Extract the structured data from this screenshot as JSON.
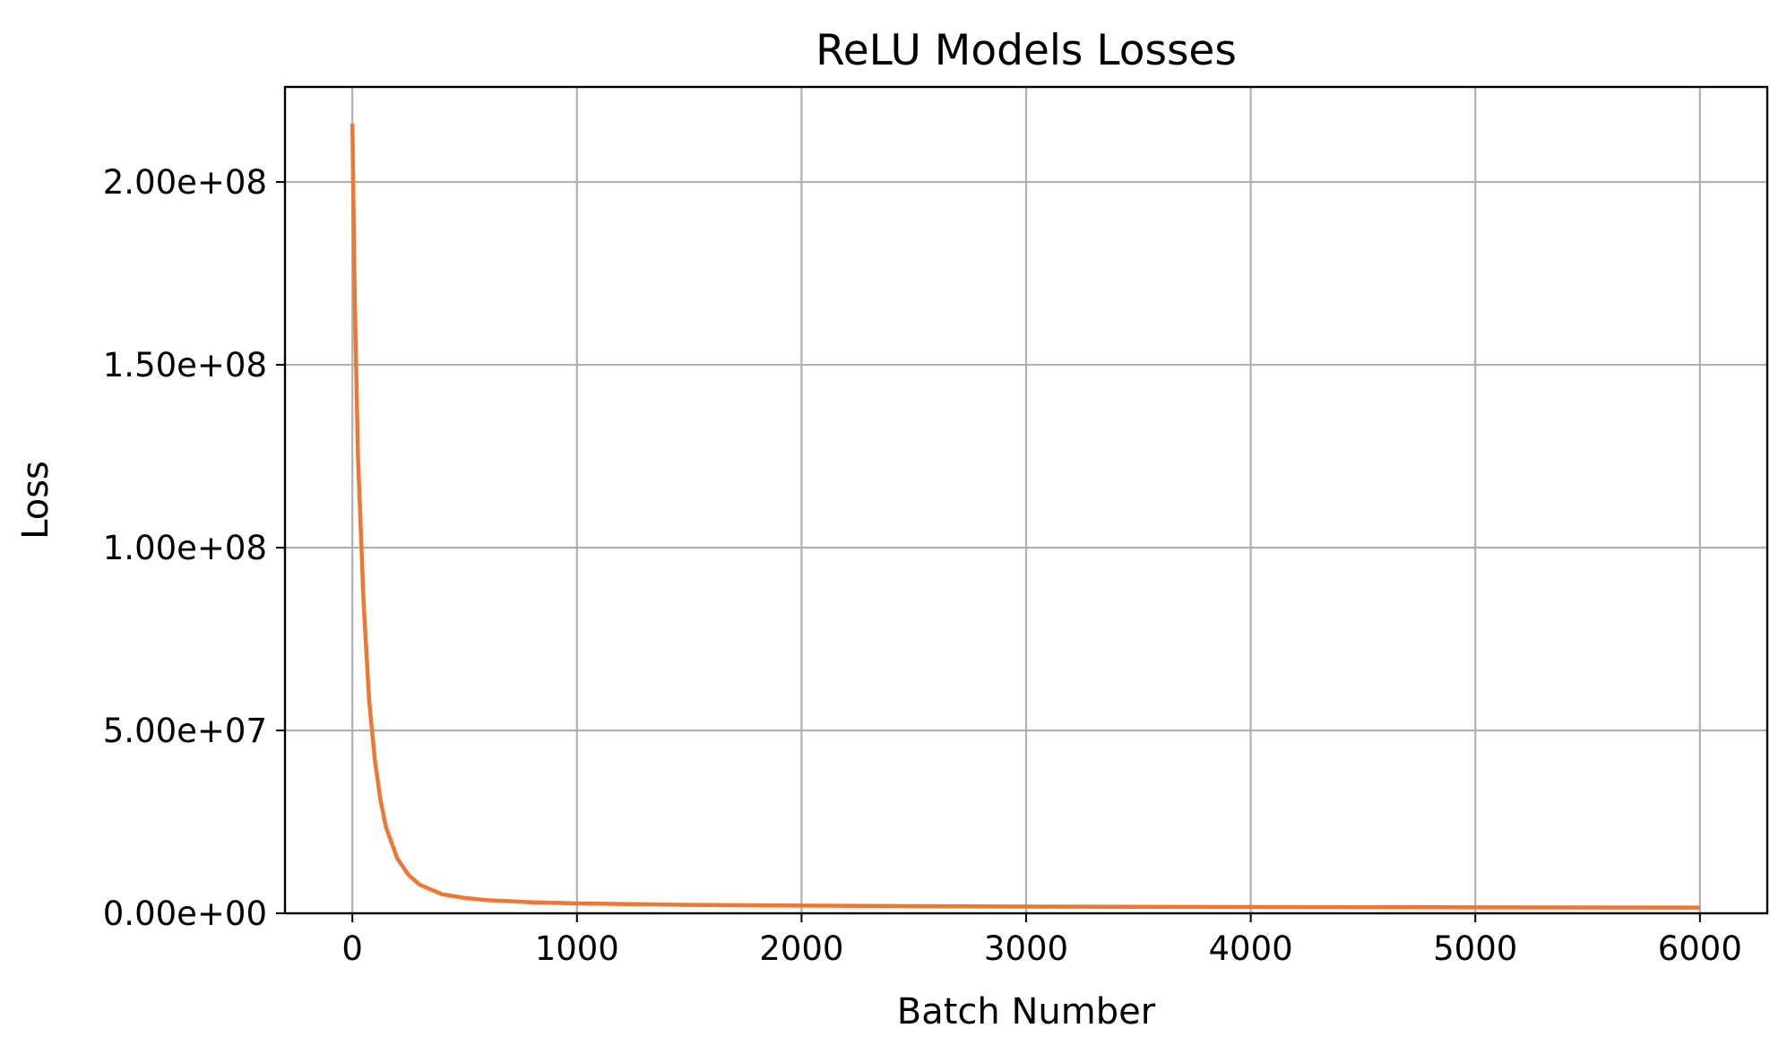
{
  "chart_data": {
    "type": "line",
    "title": "ReLU Models Losses",
    "xlabel": "Batch Number",
    "ylabel": "Loss",
    "xlim": [
      -300,
      6300
    ],
    "ylim": [
      0,
      226000000
    ],
    "xticks": [
      {
        "value": 0,
        "label": "0"
      },
      {
        "value": 1000,
        "label": "1000"
      },
      {
        "value": 2000,
        "label": "2000"
      },
      {
        "value": 3000,
        "label": "3000"
      },
      {
        "value": 4000,
        "label": "4000"
      },
      {
        "value": 5000,
        "label": "5000"
      },
      {
        "value": 6000,
        "label": "6000"
      }
    ],
    "yticks": [
      {
        "value": 0,
        "label": "0.00e+00"
      },
      {
        "value": 50000000,
        "label": "5.00e+07"
      },
      {
        "value": 100000000,
        "label": "1.00e+08"
      },
      {
        "value": 150000000,
        "label": "1.50e+08"
      },
      {
        "value": 200000000,
        "label": "2.00e+08"
      }
    ],
    "grid": true,
    "series": [
      {
        "color": "#ee7733",
        "x": [
          0,
          10,
          25,
          50,
          75,
          100,
          125,
          150,
          200,
          250,
          300,
          400,
          500,
          600,
          800,
          1000,
          1500,
          2000,
          2500,
          3000,
          3500,
          4000,
          4500,
          5000,
          5500,
          6000
        ],
        "y": [
          216000000,
          170000000,
          125000000,
          85000000,
          58000000,
          42000000,
          31000000,
          23500000,
          15000000,
          10500000,
          7800000,
          5200000,
          4200000,
          3600000,
          3000000,
          2700000,
          2300000,
          2100000,
          1950000,
          1850000,
          1780000,
          1720000,
          1670000,
          1620000,
          1580000,
          1550000
        ]
      }
    ]
  }
}
